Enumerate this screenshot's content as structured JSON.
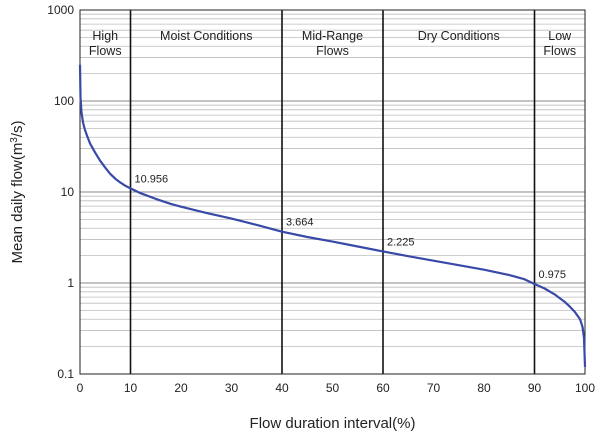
{
  "chart_data": {
    "type": "line",
    "xlabel": "Flow duration interval(%)",
    "ylabel": "Mean daily flow(m3/s)",
    "ylabel_parts": [
      "Mean daily flow(m",
      "3",
      "/s)"
    ],
    "xlim": [
      0,
      100
    ],
    "ylim": [
      0.1,
      1000
    ],
    "y_scale": "log",
    "grid": true,
    "line_color": "#3949a8",
    "x_ticks": [
      "0",
      "10",
      "20",
      "30",
      "40",
      "50",
      "60",
      "70",
      "80",
      "90",
      "100"
    ],
    "y_ticks": [
      "0.1",
      "1",
      "10",
      "100",
      "1000"
    ],
    "zone_boundaries": [
      10,
      40,
      60,
      90
    ],
    "zones": [
      {
        "lines": [
          "High",
          "Flows"
        ],
        "x_range": [
          0,
          10
        ]
      },
      {
        "lines": [
          "Moist Conditions"
        ],
        "x_range": [
          10,
          40
        ]
      },
      {
        "lines": [
          "Mid-Range",
          "Flows"
        ],
        "x_range": [
          40,
          60
        ]
      },
      {
        "lines": [
          "Dry Conditions"
        ],
        "x_range": [
          60,
          90
        ]
      },
      {
        "lines": [
          "Low",
          "Flows"
        ],
        "x_range": [
          90,
          100
        ]
      }
    ],
    "annotations": [
      {
        "text": "10.956",
        "x": 10,
        "y": 10.956
      },
      {
        "text": "3.664",
        "x": 40,
        "y": 3.664
      },
      {
        "text": "2.225",
        "x": 60,
        "y": 2.225
      },
      {
        "text": "0.975",
        "x": 90,
        "y": 0.975
      }
    ],
    "series": [
      {
        "x": [
          0,
          0.1,
          0.3,
          0.6,
          1,
          1.5,
          2,
          3,
          4,
          5,
          6,
          7,
          8,
          9,
          10,
          12,
          15,
          18,
          20,
          25,
          30,
          35,
          40,
          45,
          50,
          55,
          60,
          65,
          70,
          75,
          80,
          85,
          88,
          90,
          92,
          94,
          95,
          96,
          97,
          98,
          99,
          99.5,
          99.8,
          100
        ],
        "y": [
          250,
          110,
          75,
          58,
          48,
          40,
          34,
          27,
          22,
          18.5,
          15.8,
          14,
          12.7,
          11.7,
          10.956,
          9.7,
          8.4,
          7.4,
          6.9,
          5.9,
          5.1,
          4.35,
          3.664,
          3.2,
          2.85,
          2.52,
          2.225,
          1.97,
          1.76,
          1.57,
          1.4,
          1.22,
          1.1,
          0.975,
          0.87,
          0.75,
          0.68,
          0.62,
          0.55,
          0.48,
          0.4,
          0.33,
          0.25,
          0.12
        ]
      }
    ]
  }
}
